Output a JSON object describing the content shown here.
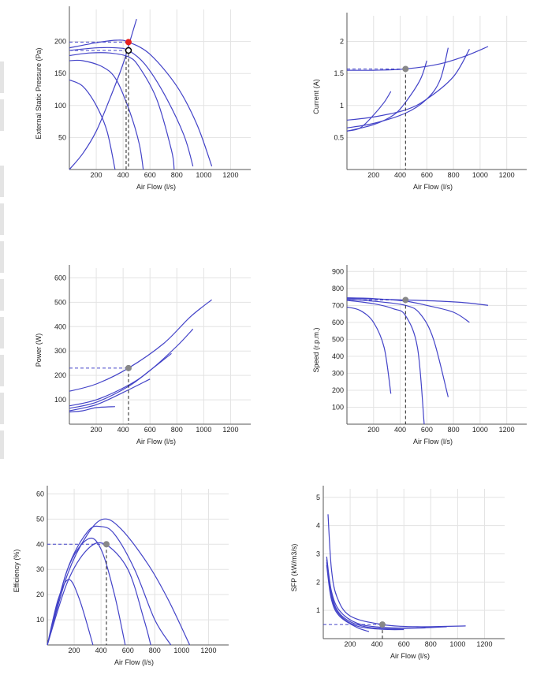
{
  "chart_data": [
    {
      "type": "line",
      "ylabel": "External Static Pressure (Pa)",
      "xlabel": "Air Flow (l/s)",
      "xlim": [
        0,
        1350
      ],
      "ylim": [
        0,
        250
      ],
      "xticks": [
        200,
        400,
        600,
        800,
        1000,
        1200
      ],
      "yticks": [
        50,
        100,
        150,
        200
      ],
      "grid": true,
      "series": [
        {
          "points": [
            [
              0,
              190
            ],
            [
              200,
              198
            ],
            [
              350,
              202
            ],
            [
              440,
              199
            ],
            [
              600,
              180
            ],
            [
              800,
              130
            ],
            [
              950,
              70
            ],
            [
              1060,
              5
            ]
          ]
        },
        {
          "points": [
            [
              0,
              186
            ],
            [
              200,
              190
            ],
            [
              350,
              190
            ],
            [
              440,
              186
            ],
            [
              560,
              165
            ],
            [
              700,
              120
            ],
            [
              850,
              55
            ],
            [
              920,
              5
            ]
          ]
        },
        {
          "points": [
            [
              0,
              178
            ],
            [
              150,
              182
            ],
            [
              300,
              182
            ],
            [
              440,
              176
            ],
            [
              520,
              160
            ],
            [
              650,
              110
            ],
            [
              760,
              30
            ],
            [
              780,
              0
            ]
          ]
        },
        {
          "points": [
            [
              0,
              170
            ],
            [
              100,
              170
            ],
            [
              250,
              160
            ],
            [
              350,
              140
            ],
            [
              450,
              90
            ],
            [
              520,
              40
            ],
            [
              550,
              0
            ]
          ]
        },
        {
          "points": [
            [
              0,
              140
            ],
            [
              100,
              130
            ],
            [
              200,
              100
            ],
            [
              280,
              60
            ],
            [
              340,
              0
            ]
          ]
        },
        {
          "points": [
            [
              0,
              0
            ],
            [
              100,
              25
            ],
            [
              200,
              60
            ],
            [
              300,
              110
            ],
            [
              400,
              165
            ],
            [
              450,
              200
            ],
            [
              500,
              235
            ]
          ]
        }
      ],
      "operating_point": {
        "x": 440,
        "y": 199
      },
      "design_point": {
        "x": 440,
        "y": 186
      }
    },
    {
      "type": "line",
      "ylabel": "Current (A)",
      "xlabel": "Air Flow (l/s)",
      "xlim": [
        0,
        1350
      ],
      "ylim": [
        0,
        2.4
      ],
      "xticks": [
        200,
        400,
        600,
        800,
        1000,
        1200
      ],
      "yticks": [
        0.5,
        1,
        1.5,
        2
      ],
      "grid": true,
      "series": [
        {
          "points": [
            [
              0,
              1.55
            ],
            [
              200,
              1.55
            ],
            [
              440,
              1.57
            ],
            [
              700,
              1.65
            ],
            [
              900,
              1.78
            ],
            [
              1060,
              1.92
            ]
          ]
        },
        {
          "points": [
            [
              0,
              0.77
            ],
            [
              200,
              0.82
            ],
            [
              440,
              0.93
            ],
            [
              600,
              1.1
            ],
            [
              800,
              1.45
            ],
            [
              920,
              1.88
            ]
          ]
        },
        {
          "points": [
            [
              0,
              0.65
            ],
            [
              200,
              0.72
            ],
            [
              440,
              0.88
            ],
            [
              600,
              1.1
            ],
            [
              700,
              1.4
            ],
            [
              760,
              1.9
            ]
          ]
        },
        {
          "points": [
            [
              0,
              0.6
            ],
            [
              200,
              0.7
            ],
            [
              350,
              0.85
            ],
            [
              440,
              1.05
            ],
            [
              550,
              1.4
            ],
            [
              600,
              1.7
            ]
          ]
        },
        {
          "points": [
            [
              0,
              0.6
            ],
            [
              100,
              0.65
            ],
            [
              200,
              0.85
            ],
            [
              280,
              1.05
            ],
            [
              330,
              1.22
            ]
          ]
        }
      ],
      "operating_point": {
        "x": 440,
        "y": 1.57
      }
    },
    {
      "type": "line",
      "ylabel": "Power (W)",
      "xlabel": "Air Flow (l/s)",
      "xlim": [
        0,
        1350
      ],
      "ylim": [
        0,
        640
      ],
      "xticks": [
        200,
        400,
        600,
        800,
        1000,
        1200
      ],
      "yticks": [
        100,
        200,
        300,
        400,
        500,
        600
      ],
      "grid": true,
      "series": [
        {
          "points": [
            [
              0,
              135
            ],
            [
              200,
              165
            ],
            [
              440,
              230
            ],
            [
              700,
              330
            ],
            [
              900,
              440
            ],
            [
              1060,
              510
            ]
          ]
        },
        {
          "points": [
            [
              0,
              75
            ],
            [
              200,
              100
            ],
            [
              440,
              160
            ],
            [
              600,
              220
            ],
            [
              800,
              320
            ],
            [
              920,
              390
            ]
          ]
        },
        {
          "points": [
            [
              0,
              65
            ],
            [
              200,
              90
            ],
            [
              440,
              155
            ],
            [
              600,
              220
            ],
            [
              760,
              290
            ]
          ]
        },
        {
          "points": [
            [
              0,
              55
            ],
            [
              200,
              80
            ],
            [
              400,
              130
            ],
            [
              600,
              185
            ]
          ]
        },
        {
          "points": [
            [
              0,
              50
            ],
            [
              100,
              55
            ],
            [
              200,
              68
            ],
            [
              340,
              72
            ]
          ]
        }
      ],
      "operating_point": {
        "x": 440,
        "y": 230
      }
    },
    {
      "type": "line",
      "ylabel": "Speed (r.p.m.)",
      "xlabel": "Air Flow (l/s)",
      "xlim": [
        0,
        1350
      ],
      "ylim": [
        0,
        920
      ],
      "xticks": [
        200,
        400,
        600,
        800,
        1000,
        1200
      ],
      "yticks": [
        100,
        200,
        300,
        400,
        500,
        600,
        700,
        800,
        900
      ],
      "grid": true,
      "series": [
        {
          "points": [
            [
              0,
              740
            ],
            [
              200,
              738
            ],
            [
              440,
              732
            ],
            [
              700,
              725
            ],
            [
              900,
              715
            ],
            [
              1060,
              700
            ]
          ]
        },
        {
          "points": [
            [
              0,
              745
            ],
            [
              200,
              740
            ],
            [
              440,
              725
            ],
            [
              600,
              700
            ],
            [
              800,
              660
            ],
            [
              920,
              600
            ]
          ]
        },
        {
          "points": [
            [
              0,
              735
            ],
            [
              200,
              725
            ],
            [
              440,
              700
            ],
            [
              550,
              650
            ],
            [
              650,
              500
            ],
            [
              760,
              160
            ]
          ]
        },
        {
          "points": [
            [
              0,
              730
            ],
            [
              200,
              710
            ],
            [
              350,
              680
            ],
            [
              440,
              640
            ],
            [
              530,
              450
            ],
            [
              580,
              0
            ]
          ]
        },
        {
          "points": [
            [
              0,
              690
            ],
            [
              100,
              670
            ],
            [
              200,
              600
            ],
            [
              280,
              450
            ],
            [
              330,
              180
            ]
          ]
        }
      ],
      "operating_point": {
        "x": 440,
        "y": 732
      }
    },
    {
      "type": "line",
      "ylabel": "Efficiency (%)",
      "xlabel": "Air Flow (l/s)",
      "xlim": [
        0,
        1350
      ],
      "ylim": [
        0,
        62
      ],
      "xticks": [
        200,
        400,
        600,
        800,
        1000,
        1200
      ],
      "yticks": [
        10,
        20,
        30,
        40,
        50,
        60
      ],
      "grid": true,
      "series": [
        {
          "points": [
            [
              0,
              0
            ],
            [
              150,
              28
            ],
            [
              300,
              44
            ],
            [
              420,
              50
            ],
            [
              550,
              46
            ],
            [
              750,
              32
            ],
            [
              900,
              18
            ],
            [
              1060,
              0
            ]
          ]
        },
        {
          "points": [
            [
              0,
              0
            ],
            [
              150,
              30
            ],
            [
              300,
              45
            ],
            [
              400,
              47
            ],
            [
              500,
              44
            ],
            [
              650,
              30
            ],
            [
              800,
              10
            ],
            [
              920,
              0
            ]
          ]
        },
        {
          "points": [
            [
              0,
              0
            ],
            [
              150,
              25
            ],
            [
              300,
              38
            ],
            [
              430,
              40
            ],
            [
              600,
              30
            ],
            [
              720,
              10
            ],
            [
              770,
              0
            ]
          ]
        },
        {
          "points": [
            [
              0,
              0
            ],
            [
              150,
              30
            ],
            [
              300,
              42
            ],
            [
              400,
              38
            ],
            [
              500,
              20
            ],
            [
              580,
              0
            ]
          ]
        },
        {
          "points": [
            [
              0,
              0
            ],
            [
              80,
              18
            ],
            [
              160,
              26
            ],
            [
              240,
              18
            ],
            [
              340,
              0
            ]
          ]
        }
      ],
      "operating_point": {
        "x": 440,
        "y": 40
      }
    },
    {
      "type": "line",
      "ylabel": "SFP (kW/m3/s)",
      "xlabel": "Air Flow (l/s)",
      "xlim": [
        0,
        1350
      ],
      "ylim": [
        0,
        5.3
      ],
      "xticks": [
        200,
        400,
        600,
        800,
        1000,
        1200
      ],
      "yticks": [
        1,
        2,
        3,
        4,
        5
      ],
      "grid": true,
      "series": [
        {
          "points": [
            [
              35,
              4.4
            ],
            [
              60,
              2.5
            ],
            [
              100,
              1.5
            ],
            [
              200,
              0.8
            ],
            [
              440,
              0.5
            ],
            [
              700,
              0.42
            ],
            [
              1060,
              0.45
            ]
          ]
        },
        {
          "points": [
            [
              25,
              2.9
            ],
            [
              60,
              1.7
            ],
            [
              120,
              1.0
            ],
            [
              250,
              0.55
            ],
            [
              440,
              0.4
            ],
            [
              700,
              0.38
            ],
            [
              920,
              0.42
            ]
          ]
        },
        {
          "points": [
            [
              25,
              2.8
            ],
            [
              60,
              1.6
            ],
            [
              120,
              0.9
            ],
            [
              250,
              0.5
            ],
            [
              440,
              0.36
            ],
            [
              760,
              0.38
            ]
          ]
        },
        {
          "points": [
            [
              25,
              2.7
            ],
            [
              60,
              1.5
            ],
            [
              120,
              0.85
            ],
            [
              250,
              0.45
            ],
            [
              440,
              0.33
            ],
            [
              600,
              0.32
            ]
          ]
        },
        {
          "points": [
            [
              25,
              2.6
            ],
            [
              60,
              1.4
            ],
            [
              120,
              0.8
            ],
            [
              250,
              0.4
            ],
            [
              340,
              0.25
            ]
          ]
        }
      ],
      "operating_point": {
        "x": 440,
        "y": 0.5
      }
    }
  ]
}
